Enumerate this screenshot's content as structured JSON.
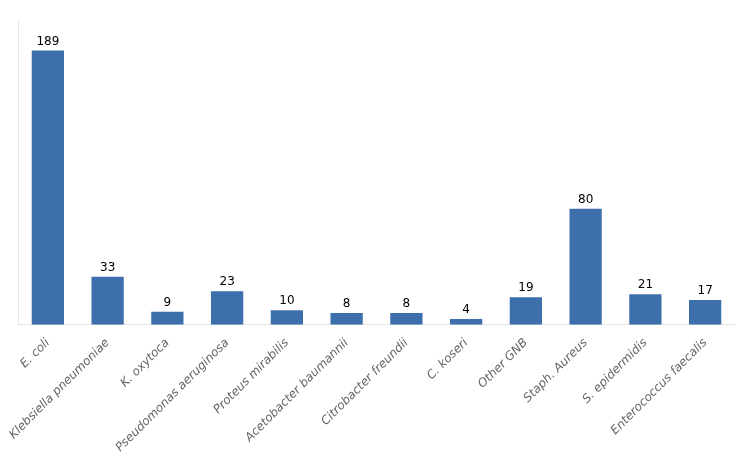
{
  "chart_data": {
    "type": "bar",
    "categories": [
      "E. coli",
      "Klebsiella pneumoniae",
      "K. oxytoca",
      "Pseudomonas aeruginosa",
      "Proteus mirabilis",
      "Acetobacter baumannii",
      "Citrobacter freundii",
      "C. koseri",
      "Other GNB",
      "Staph. Aureus",
      "S. epidermidis",
      "Enterococcus faecalis"
    ],
    "values": [
      189,
      33,
      9,
      23,
      10,
      8,
      8,
      4,
      19,
      80,
      21,
      17
    ],
    "color": "#3d6fad",
    "ylim": [
      0,
      210
    ],
    "data_labels": true,
    "tick_labels": "x",
    "grid": false
  }
}
